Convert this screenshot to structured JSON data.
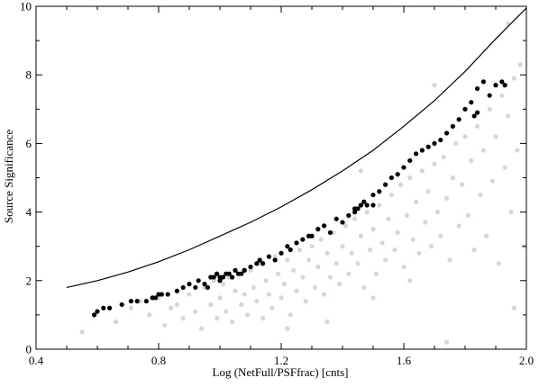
{
  "chart_data": {
    "type": "scatter",
    "title": "",
    "xlabel": "Log (NetFull/PSFfrac) [cnts]",
    "ylabel": "Source Significance",
    "xlim": [
      0.4,
      2.0
    ],
    "ylim": [
      0,
      10
    ],
    "x_ticks": [
      "0.4",
      "0.8",
      "1.2",
      "1.6",
      "2.0"
    ],
    "y_ticks": [
      "0",
      "2",
      "4",
      "6",
      "8",
      "10"
    ],
    "grid": false,
    "legend": "none",
    "series": [
      {
        "kind": "scatter",
        "color": "#d6d6d6",
        "points": [
          [
            0.55,
            0.5
          ],
          [
            0.6,
            1.1
          ],
          [
            0.66,
            0.8
          ],
          [
            0.71,
            1.2
          ],
          [
            0.74,
            1.4
          ],
          [
            0.77,
            1.0
          ],
          [
            0.8,
            1.5
          ],
          [
            0.82,
            0.7
          ],
          [
            0.84,
            1.2
          ],
          [
            0.86,
            1.3
          ],
          [
            0.88,
            0.9
          ],
          [
            0.9,
            1.6
          ],
          [
            0.92,
            1.1
          ],
          [
            0.94,
            0.6
          ],
          [
            0.95,
            1.8
          ],
          [
            0.97,
            1.3
          ],
          [
            0.98,
            2.0
          ],
          [
            0.99,
            0.9
          ],
          [
            1.0,
            1.5
          ],
          [
            1.01,
            1.9
          ],
          [
            1.02,
            1.1
          ],
          [
            1.03,
            2.1
          ],
          [
            1.04,
            0.8
          ],
          [
            1.05,
            1.7
          ],
          [
            1.06,
            2.2
          ],
          [
            1.07,
            1.3
          ],
          [
            1.08,
            1.6
          ],
          [
            1.09,
            1.0
          ],
          [
            1.1,
            2.3
          ],
          [
            1.11,
            1.8
          ],
          [
            1.12,
            1.4
          ],
          [
            1.13,
            2.5
          ],
          [
            1.14,
            0.9
          ],
          [
            1.15,
            2.0
          ],
          [
            1.16,
            1.6
          ],
          [
            1.17,
            1.2
          ],
          [
            1.18,
            2.7
          ],
          [
            1.19,
            2.2
          ],
          [
            1.2,
            1.5
          ],
          [
            1.21,
            1.9
          ],
          [
            1.22,
            2.6
          ],
          [
            1.23,
            1.0
          ],
          [
            1.24,
            2.3
          ],
          [
            1.25,
            1.7
          ],
          [
            1.26,
            2.9
          ],
          [
            1.27,
            2.1
          ],
          [
            1.28,
            1.4
          ],
          [
            1.29,
            2.6
          ],
          [
            1.3,
            3.0
          ],
          [
            1.31,
            1.8
          ],
          [
            1.32,
            2.4
          ],
          [
            1.33,
            3.2
          ],
          [
            1.34,
            1.6
          ],
          [
            1.35,
            2.8
          ],
          [
            1.36,
            2.1
          ],
          [
            1.37,
            3.4
          ],
          [
            1.38,
            2.5
          ],
          [
            1.39,
            1.9
          ],
          [
            1.4,
            3.0
          ],
          [
            1.41,
            3.6
          ],
          [
            1.42,
            2.2
          ],
          [
            1.43,
            2.8
          ],
          [
            1.44,
            3.8
          ],
          [
            1.45,
            2.5
          ],
          [
            1.46,
            3.3
          ],
          [
            1.47,
            1.8
          ],
          [
            1.48,
            4.0
          ],
          [
            1.49,
            2.9
          ],
          [
            1.5,
            3.5
          ],
          [
            1.51,
            2.2
          ],
          [
            1.52,
            4.2
          ],
          [
            1.53,
            3.1
          ],
          [
            1.54,
            2.6
          ],
          [
            1.55,
            3.8
          ],
          [
            1.56,
            4.5
          ],
          [
            1.57,
            2.9
          ],
          [
            1.58,
            3.4
          ],
          [
            1.59,
            4.8
          ],
          [
            1.6,
            2.4
          ],
          [
            1.61,
            3.9
          ],
          [
            1.62,
            5.0
          ],
          [
            1.63,
            3.2
          ],
          [
            1.64,
            4.3
          ],
          [
            1.65,
            2.8
          ],
          [
            1.66,
            5.2
          ],
          [
            1.67,
            3.7
          ],
          [
            1.68,
            4.6
          ],
          [
            1.69,
            3.0
          ],
          [
            1.7,
            5.4
          ],
          [
            1.71,
            4.0
          ],
          [
            1.72,
            3.3
          ],
          [
            1.73,
            5.6
          ],
          [
            1.74,
            4.4
          ],
          [
            1.75,
            2.6
          ],
          [
            1.76,
            5.0
          ],
          [
            1.77,
            6.0
          ],
          [
            1.78,
            3.6
          ],
          [
            1.79,
            4.8
          ],
          [
            1.8,
            6.2
          ],
          [
            1.81,
            3.9
          ],
          [
            1.82,
            5.5
          ],
          [
            1.83,
            2.9
          ],
          [
            1.84,
            6.5
          ],
          [
            1.85,
            4.5
          ],
          [
            1.86,
            5.8
          ],
          [
            1.87,
            3.3
          ],
          [
            1.88,
            7.0
          ],
          [
            1.89,
            4.9
          ],
          [
            1.9,
            6.2
          ],
          [
            1.91,
            2.5
          ],
          [
            1.92,
            7.4
          ],
          [
            1.93,
            5.3
          ],
          [
            1.94,
            6.8
          ],
          [
            1.95,
            4.0
          ],
          [
            1.96,
            7.9
          ],
          [
            1.97,
            5.8
          ],
          [
            1.98,
            8.3
          ],
          [
            1.99,
            3.0
          ],
          [
            1.74,
            0.2
          ],
          [
            1.7,
            7.7
          ],
          [
            1.22,
            0.6
          ],
          [
            1.35,
            0.8
          ],
          [
            1.5,
            1.5
          ],
          [
            1.62,
            2.0
          ],
          [
            1.46,
            5.2
          ],
          [
            1.94,
            9.5
          ],
          [
            1.96,
            1.2
          ]
        ]
      },
      {
        "kind": "scatter",
        "color": "#000000",
        "points": [
          [
            0.59,
            1.0
          ],
          [
            0.6,
            1.1
          ],
          [
            0.62,
            1.2
          ],
          [
            0.64,
            1.2
          ],
          [
            0.68,
            1.3
          ],
          [
            0.71,
            1.4
          ],
          [
            0.73,
            1.4
          ],
          [
            0.76,
            1.4
          ],
          [
            0.78,
            1.5
          ],
          [
            0.79,
            1.5
          ],
          [
            0.8,
            1.6
          ],
          [
            0.81,
            1.6
          ],
          [
            0.83,
            1.6
          ],
          [
            0.86,
            1.7
          ],
          [
            0.88,
            1.8
          ],
          [
            0.9,
            1.9
          ],
          [
            0.92,
            1.8
          ],
          [
            0.93,
            2.0
          ],
          [
            0.95,
            1.9
          ],
          [
            0.97,
            2.1
          ],
          [
            0.98,
            2.1
          ],
          [
            0.99,
            2.2
          ],
          [
            1.0,
            2.1
          ],
          [
            1.01,
            2.1
          ],
          [
            1.02,
            2.2
          ],
          [
            1.03,
            2.2
          ],
          [
            1.04,
            2.1
          ],
          [
            1.05,
            2.3
          ],
          [
            1.06,
            2.2
          ],
          [
            1.07,
            2.2
          ],
          [
            1.08,
            2.3
          ],
          [
            1.1,
            2.4
          ],
          [
            1.12,
            2.5
          ],
          [
            1.13,
            2.6
          ],
          [
            1.14,
            2.5
          ],
          [
            1.16,
            2.7
          ],
          [
            1.18,
            2.6
          ],
          [
            1.2,
            2.8
          ],
          [
            1.22,
            3.0
          ],
          [
            1.23,
            2.9
          ],
          [
            1.25,
            3.1
          ],
          [
            1.27,
            3.2
          ],
          [
            1.29,
            3.3
          ],
          [
            1.3,
            3.3
          ],
          [
            1.32,
            3.5
          ],
          [
            1.34,
            3.6
          ],
          [
            1.36,
            3.4
          ],
          [
            1.38,
            3.8
          ],
          [
            1.4,
            3.7
          ],
          [
            1.42,
            3.9
          ],
          [
            1.44,
            4.0
          ],
          [
            1.45,
            4.1
          ],
          [
            1.46,
            4.2
          ],
          [
            1.47,
            4.3
          ],
          [
            1.48,
            4.2
          ],
          [
            1.5,
            4.5
          ],
          [
            1.52,
            4.6
          ],
          [
            1.54,
            4.8
          ],
          [
            1.56,
            5.0
          ],
          [
            1.58,
            5.1
          ],
          [
            1.6,
            5.3
          ],
          [
            1.62,
            5.5
          ],
          [
            1.64,
            5.7
          ],
          [
            1.66,
            5.8
          ],
          [
            1.68,
            5.9
          ],
          [
            1.7,
            6.0
          ],
          [
            1.72,
            6.1
          ],
          [
            1.74,
            6.3
          ],
          [
            1.76,
            6.5
          ],
          [
            1.78,
            6.7
          ],
          [
            1.8,
            7.0
          ],
          [
            1.82,
            7.2
          ],
          [
            1.84,
            7.6
          ],
          [
            1.86,
            7.8
          ],
          [
            1.88,
            7.4
          ],
          [
            1.9,
            7.7
          ],
          [
            1.92,
            7.8
          ],
          [
            1.93,
            7.7
          ],
          [
            1.83,
            6.8
          ],
          [
            1.84,
            6.9
          ],
          [
            1.44,
            4.1
          ],
          [
            1.5,
            4.2
          ],
          [
            1.08,
            2.3
          ],
          [
            1.0,
            2.0
          ],
          [
            0.96,
            1.8
          ]
        ]
      },
      {
        "kind": "line",
        "color": "#000000",
        "points": [
          [
            0.5,
            1.8
          ],
          [
            0.6,
            2.0
          ],
          [
            0.7,
            2.25
          ],
          [
            0.8,
            2.55
          ],
          [
            0.9,
            2.9
          ],
          [
            1.0,
            3.3
          ],
          [
            1.1,
            3.7
          ],
          [
            1.2,
            4.15
          ],
          [
            1.3,
            4.65
          ],
          [
            1.4,
            5.2
          ],
          [
            1.5,
            5.8
          ],
          [
            1.6,
            6.5
          ],
          [
            1.7,
            7.25
          ],
          [
            1.8,
            8.1
          ],
          [
            1.9,
            9.05
          ],
          [
            2.0,
            9.95
          ]
        ]
      }
    ]
  }
}
